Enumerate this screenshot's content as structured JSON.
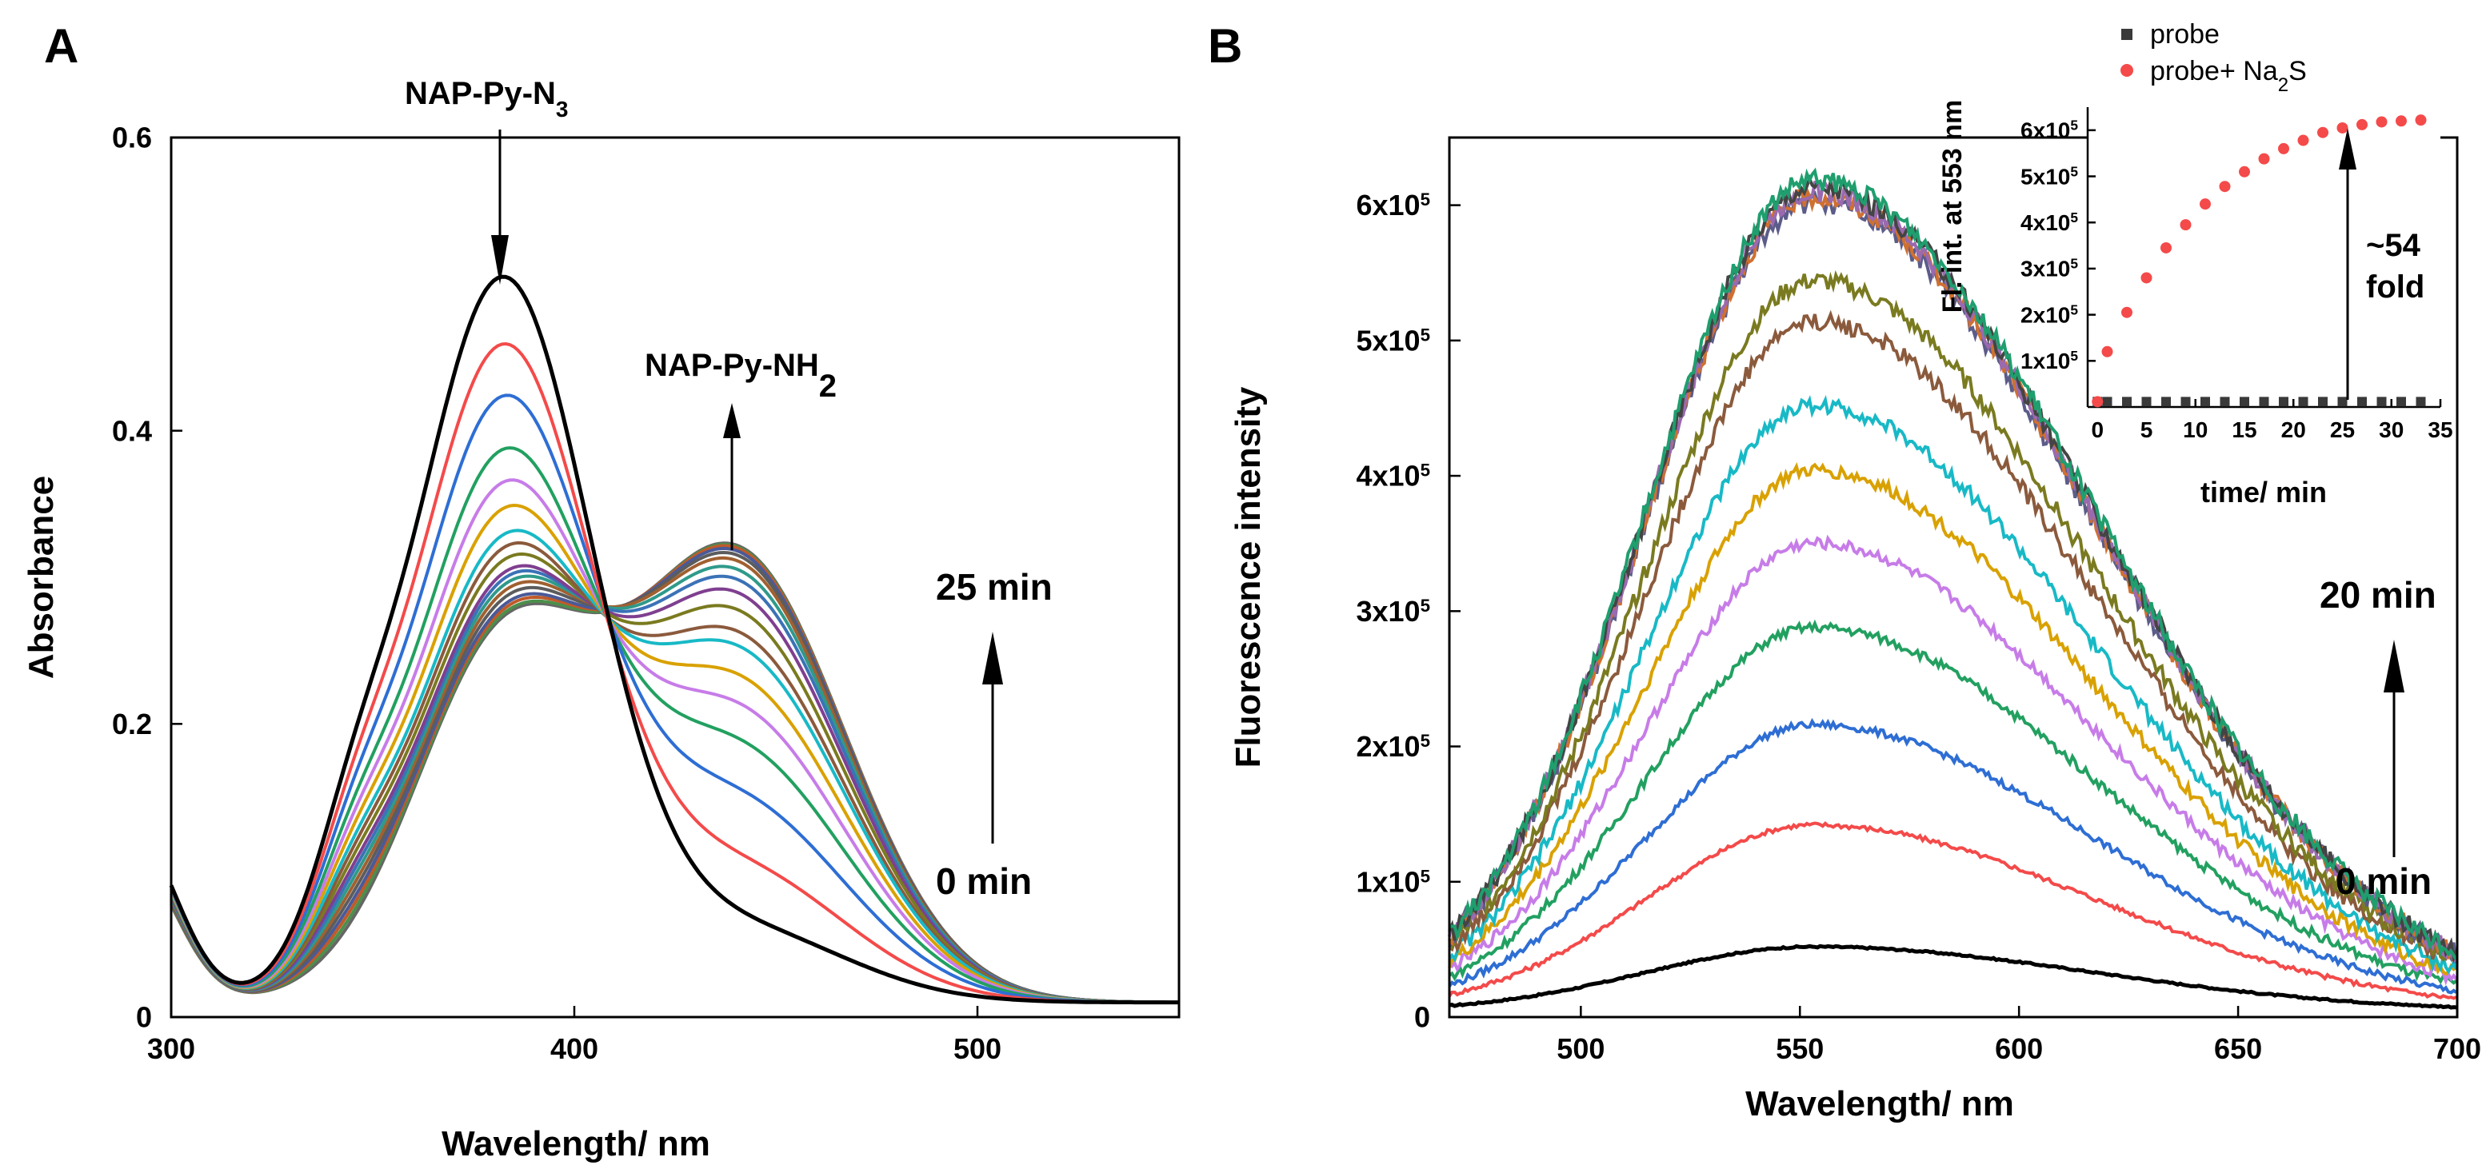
{
  "panels": {
    "A": {
      "label": "A"
    },
    "B": {
      "label": "B"
    }
  },
  "chart_data": [
    {
      "id": "A",
      "type": "line",
      "xlabel": "Wavelength/ nm",
      "ylabel": "Absorbance",
      "xlim": [
        300,
        550
      ],
      "ylim": [
        0,
        0.6
      ],
      "xticks": [
        {
          "v": 300,
          "t": "300"
        },
        {
          "v": 400,
          "t": "400"
        },
        {
          "v": 500,
          "t": "500"
        }
      ],
      "yticks": [
        {
          "v": 0,
          "t": "0"
        },
        {
          "v": 0.2,
          "t": "0.2"
        },
        {
          "v": 0.4,
          "t": "0.4"
        },
        {
          "v": 0.6,
          "t": "0.6"
        }
      ],
      "annotations": {
        "peak1": {
          "main": "NAP-Py-N",
          "sub": "3"
        },
        "peak2": {
          "main": "NAP-Py-NH",
          "sub": "2"
        },
        "t_end": "25 min",
        "t_start": "0 min"
      },
      "curve_model": {
        "peak1_center": 382,
        "peak1_width": 22,
        "peak2_center": 440,
        "peak2_width": 27,
        "shoulder_center": 345,
        "shoulder_width": 10,
        "uv_tail_center": 290,
        "uv_tail_width": 11,
        "a_peak1": [
          0.49,
          0.44,
          0.4,
          0.36,
          0.335,
          0.315,
          0.295,
          0.285,
          0.275,
          0.265,
          0.26,
          0.255,
          0.25,
          0.245,
          0.24,
          0.237,
          0.234,
          0.232
        ],
        "a_peak2": [
          0.05,
          0.09,
          0.135,
          0.17,
          0.195,
          0.215,
          0.235,
          0.245,
          0.26,
          0.272,
          0.281,
          0.288,
          0.294,
          0.298,
          0.301,
          0.303,
          0.304,
          0.305
        ],
        "baseline": 0.01
      },
      "colors": [
        "#000000",
        "#f44a4a",
        "#2e6ed4",
        "#22a060",
        "#c77ce8",
        "#d9a100",
        "#18b9c6",
        "#8b5a3c",
        "#7a7a20",
        "#7f3f8f",
        "#3b72b7",
        "#2f9a8a",
        "#a06030",
        "#5c5c5c",
        "#4a5a98",
        "#bf5a2b",
        "#4b8f4b",
        "#666666"
      ]
    },
    {
      "id": "B",
      "type": "line",
      "xlabel": "Wavelength/ nm",
      "ylabel": "Fluorescence intensity",
      "xlim": [
        470,
        700
      ],
      "ylim": [
        0,
        650000
      ],
      "xticks": [
        {
          "v": 500,
          "t": "500"
        },
        {
          "v": 550,
          "t": "550"
        },
        {
          "v": 600,
          "t": "600"
        },
        {
          "v": 650,
          "t": "650"
        },
        {
          "v": 700,
          "t": "700"
        }
      ],
      "yticks": [
        {
          "v": 0,
          "t": "0"
        },
        {
          "v": 100000,
          "t": "1x10",
          "e": "5"
        },
        {
          "v": 200000,
          "t": "2x10",
          "e": "5"
        },
        {
          "v": 300000,
          "t": "3x10",
          "e": "5"
        },
        {
          "v": 400000,
          "t": "4x10",
          "e": "5"
        },
        {
          "v": 500000,
          "t": "5x10",
          "e": "5"
        },
        {
          "v": 600000,
          "t": "6x10",
          "e": "5"
        }
      ],
      "annotations": {
        "t_end": "20 min",
        "t_start": "0 min"
      },
      "curve_model": {
        "peak_center": 553,
        "width_left": 38,
        "width_right": 64,
        "floor": 4000,
        "peaks": [
          48000,
          138000,
          212000,
          284000,
          346000,
          400000,
          448000,
          510000,
          540000,
          598000,
          602000,
          606000,
          610000,
          614000
        ]
      },
      "colors": [
        "#000000",
        "#f44a4a",
        "#2e6ed4",
        "#22a060",
        "#c77ce8",
        "#d9a100",
        "#18b9c6",
        "#8b5a3c",
        "#7a7a20",
        "#5c5c8a",
        "#d07030",
        "#9a6ab0",
        "#444444",
        "#1f9e6e"
      ]
    },
    {
      "id": "B-inset",
      "type": "scatter",
      "xlabel": "time/ min",
      "ylabel": "Fl. int. at 553 nm",
      "xlim": [
        -1,
        35
      ],
      "ylim": [
        0,
        650000
      ],
      "xticks": [
        {
          "v": 0,
          "t": "0"
        },
        {
          "v": 5,
          "t": "5"
        },
        {
          "v": 10,
          "t": "10"
        },
        {
          "v": 15,
          "t": "15"
        },
        {
          "v": 20,
          "t": "20"
        },
        {
          "v": 25,
          "t": "25"
        },
        {
          "v": 30,
          "t": "30"
        },
        {
          "v": 35,
          "t": "35"
        }
      ],
      "yticks": [
        {
          "v": 100000,
          "t": "1x10",
          "e": "5"
        },
        {
          "v": 200000,
          "t": "2x10",
          "e": "5"
        },
        {
          "v": 300000,
          "t": "3x10",
          "e": "5"
        },
        {
          "v": 400000,
          "t": "4x10",
          "e": "5"
        },
        {
          "v": 500000,
          "t": "5x10",
          "e": "5"
        },
        {
          "v": 600000,
          "t": "6x10",
          "e": "5"
        }
      ],
      "legend": {
        "position": "top",
        "probe": {
          "label": "probe",
          "color": "#3a3a3a"
        },
        "probe_na2s": {
          "label": "probe+ Na",
          "sub": "2",
          "tail": "S",
          "color": "#f44a4a"
        }
      },
      "fold_label": {
        "line1": "~54",
        "line2": "fold"
      },
      "series": [
        {
          "name": "probe",
          "x": [
            0,
            1,
            3,
            5,
            7,
            9,
            11,
            13,
            15,
            17,
            19,
            21,
            23,
            25,
            27,
            29,
            31,
            33
          ],
          "values": [
            11500,
            11500,
            11500,
            11500,
            11500,
            11500,
            11500,
            11500,
            11500,
            11500,
            11500,
            11500,
            11500,
            11500,
            11500,
            11500,
            11500,
            11500
          ]
        },
        {
          "name": "probe+ Na2S",
          "x": [
            0,
            1,
            3,
            5,
            7,
            9,
            11,
            13,
            15,
            17,
            19,
            21,
            23,
            25,
            27,
            29,
            31,
            33
          ],
          "values": [
            11500,
            120000,
            205000,
            280000,
            345000,
            395000,
            440000,
            478000,
            510000,
            538000,
            560000,
            578000,
            595000,
            605000,
            612000,
            618000,
            620000,
            622000
          ]
        }
      ]
    }
  ]
}
